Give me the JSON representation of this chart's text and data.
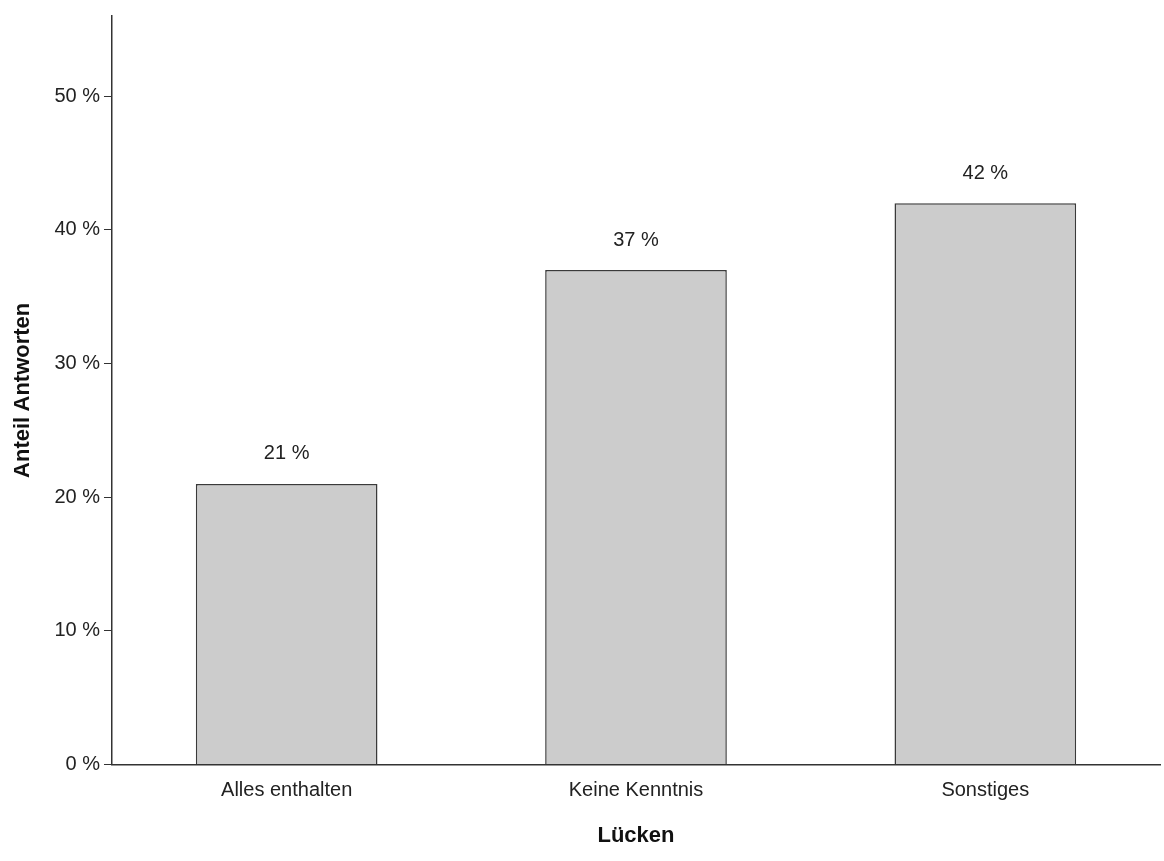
{
  "chart_data": {
    "type": "bar",
    "xlabel": "Lücken",
    "ylabel": "Anteil Antworten",
    "categories": [
      "Alles enthalten",
      "Keine Kenntnis",
      "Sonstiges"
    ],
    "values": [
      21,
      37,
      42
    ],
    "color": "#cccccc",
    "value_labels": [
      "21 %",
      "37 %",
      "42 %"
    ],
    "ylim": [
      0,
      56
    ],
    "yticks": [
      {
        "value": 0,
        "label": "0 %"
      },
      {
        "value": 10,
        "label": "10 %"
      },
      {
        "value": 20,
        "label": "20 %"
      },
      {
        "value": 30,
        "label": "30 %"
      },
      {
        "value": 40,
        "label": "40 %"
      },
      {
        "value": 50,
        "label": "50 %"
      }
    ],
    "grid": false,
    "legend": false
  }
}
